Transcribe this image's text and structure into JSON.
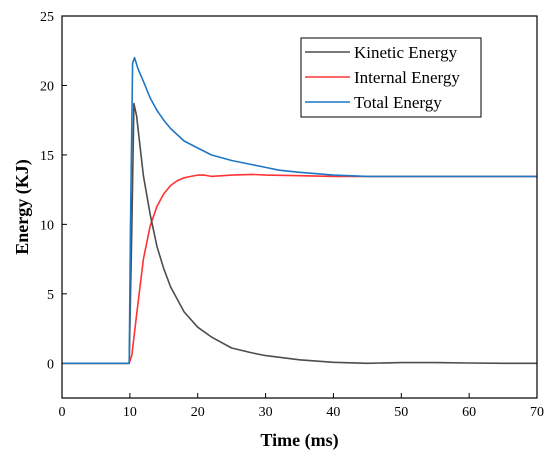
{
  "chart_data": {
    "type": "line",
    "title": "",
    "xlabel": "Time (ms)",
    "ylabel": "Energy (KJ)",
    "xlim": [
      0,
      70
    ],
    "ylim": [
      -2.5,
      25
    ],
    "xticks": [
      0,
      10,
      20,
      30,
      40,
      50,
      60,
      70
    ],
    "yticks": [
      0,
      5,
      10,
      15,
      20,
      25
    ],
    "grid": false,
    "legend_position": "top-right",
    "series": [
      {
        "name": "Kinetic Energy",
        "color": "#4d4d4d",
        "x": [
          0,
          9.9,
          10.3,
          10.6,
          11,
          12,
          13,
          14,
          15,
          16,
          18,
          20,
          22,
          25,
          28,
          30,
          35,
          40,
          45,
          50,
          55,
          60,
          65,
          70
        ],
        "y": [
          0,
          0,
          10,
          18.7,
          17.8,
          13.5,
          10.7,
          8.4,
          6.8,
          5.5,
          3.7,
          2.6,
          1.9,
          1.1,
          0.75,
          0.55,
          0.25,
          0.07,
          0,
          0.05,
          0.05,
          0.02,
          0,
          0
        ]
      },
      {
        "name": "Internal Energy",
        "color": "#ff3333",
        "x": [
          0,
          9.9,
          10.3,
          11,
          12,
          13,
          14,
          15,
          16,
          17,
          18,
          19,
          20,
          21,
          22,
          25,
          28,
          30,
          35,
          40,
          45,
          50,
          55,
          60,
          65,
          70
        ],
        "y": [
          0,
          0,
          0.6,
          3.5,
          7.5,
          9.9,
          11.3,
          12.2,
          12.8,
          13.15,
          13.35,
          13.45,
          13.55,
          13.55,
          13.45,
          13.55,
          13.6,
          13.55,
          13.5,
          13.45,
          13.45,
          13.45,
          13.45,
          13.45,
          13.45,
          13.45
        ]
      },
      {
        "name": "Total Energy",
        "color": "#1f77c4",
        "x": [
          0,
          9.9,
          10.1,
          10.4,
          10.7,
          11.2,
          12,
          13,
          14,
          15,
          16,
          18,
          20,
          22,
          25,
          28,
          30,
          32,
          35,
          40,
          45,
          50,
          55,
          60,
          65,
          70
        ],
        "y": [
          0,
          0,
          10,
          21.6,
          22.0,
          21.2,
          20.3,
          19.1,
          18.2,
          17.5,
          16.9,
          16.0,
          15.5,
          15.0,
          14.6,
          14.3,
          14.1,
          13.9,
          13.75,
          13.55,
          13.45,
          13.45,
          13.45,
          13.45,
          13.45,
          13.45
        ]
      }
    ]
  }
}
